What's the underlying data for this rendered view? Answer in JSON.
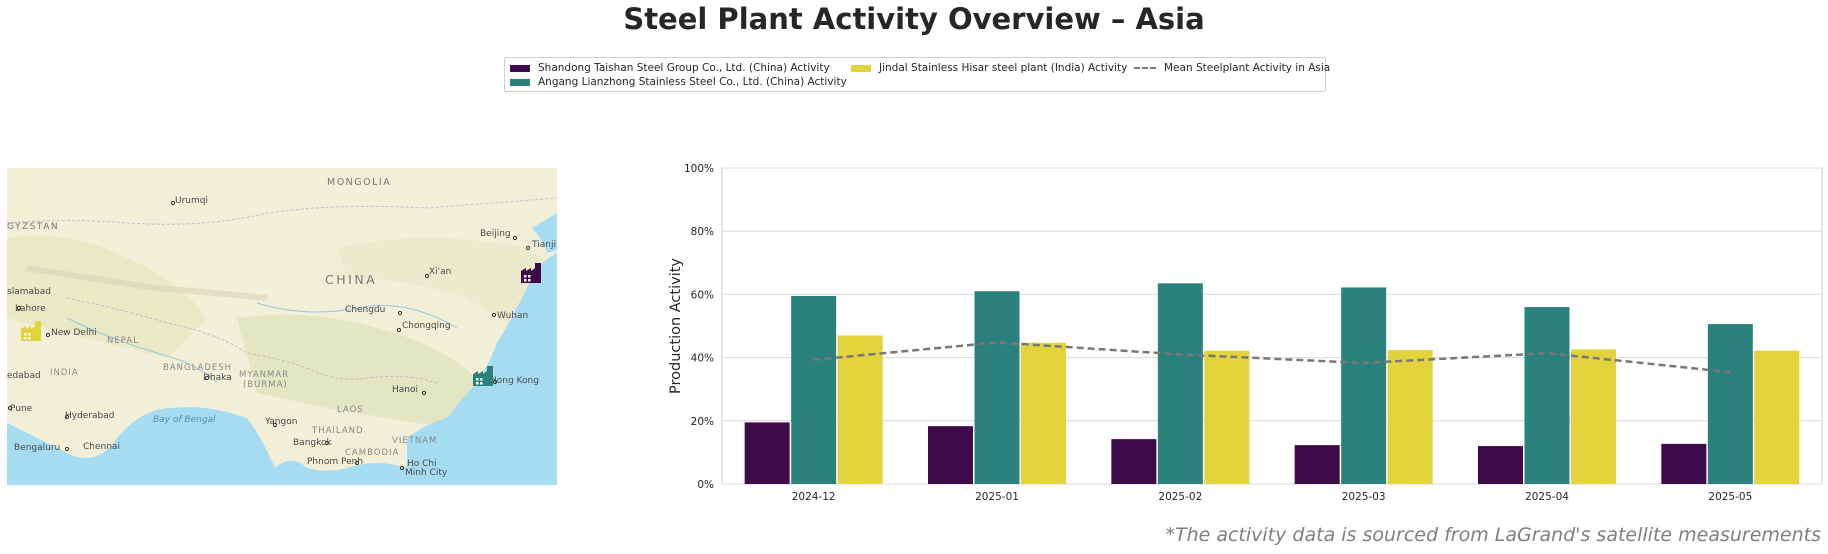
{
  "title": "Steel Plant Activity Overview – Asia",
  "footnote": "*The activity data is sourced from LaGrand's satellite measurements",
  "legend": {
    "items": [
      {
        "label": "Shandong Taishan Steel Group Co., Ltd. (China) Activity",
        "color": "#3d0a4a"
      },
      {
        "label": "Angang Lianzhong Stainless Steel Co., Ltd. (China) Activity",
        "color": "#2b817b"
      },
      {
        "label": "Jindal Stainless Hisar steel plant (India) Activity",
        "color": "#e2d33c"
      },
      {
        "label": "Mean Steelplant Activity in Asia",
        "color": "#777777"
      }
    ]
  },
  "map": {
    "labels": {
      "mongolia": "MONGOLIA",
      "urumqi": "Urumqi",
      "gyzstan": "GYZSTAN",
      "beijing": "Beijing",
      "tianjin": "Tianji",
      "china": "CHINA",
      "xian": "Xi'an",
      "islamabad": "slamabad",
      "lahore": "Lahore",
      "chengdu": "Chengdu",
      "chongqing": "Chongqing",
      "wuhan": "Wuhan",
      "newdelhi": "New Delhi",
      "nepal": "NEPAL",
      "india": "INDIA",
      "bangladesh": "BANGLADESH",
      "myanmar": "MYANMAR",
      "burma": "(BURMA)",
      "dhaka": "Dhaka",
      "edabad": "edabad",
      "hongkong": "Hong Kong",
      "hanoi": "Hanoi",
      "pune": "Pune",
      "hyderabad": "Hyderabad",
      "bayofbengal": "Bay of Bengal",
      "yangon": "Yangon",
      "laos": "LAOS",
      "thailand": "THAILAND",
      "bangkok": "Bangkok",
      "vietnam": "VIETNAM",
      "cambodia": "CAMBODIA",
      "bengaluru": "Bengaluru",
      "chennai": "Chennai",
      "phnompenh": "Phnom Penh",
      "hochiminh": "Ho Chi",
      "hochiminh2": "Minh City"
    },
    "markers": [
      {
        "plant": "Shandong Taishan Steel Group Co., Ltd. (China)",
        "color": "#3d0a4a",
        "icon": "factory-icon"
      },
      {
        "plant": "Angang Lianzhong Stainless Steel Co., Ltd. (China)",
        "color": "#2b817b",
        "icon": "factory-icon"
      },
      {
        "plant": "Jindal Stainless Hisar steel plant (India)",
        "color": "#e2d33c",
        "icon": "factory-icon"
      }
    ]
  },
  "chart_data": {
    "type": "bar",
    "categories": [
      "2024-12",
      "2025-01",
      "2025-02",
      "2025-03",
      "2025-04",
      "2025-05"
    ],
    "series": [
      {
        "name": "Shandong Taishan Steel Group Co., Ltd. (China) Activity",
        "color": "#3d0a4a",
        "values": [
          19.5,
          18.3,
          14.2,
          12.3,
          12.0,
          12.7
        ]
      },
      {
        "name": "Angang Lianzhong Stainless Steel Co., Ltd. (China) Activity",
        "color": "#2b817b",
        "values": [
          59.5,
          61.0,
          63.5,
          62.2,
          56.0,
          50.6
        ]
      },
      {
        "name": "Jindal Stainless Hisar steel plant (India) Activity",
        "color": "#e2d33c",
        "values": [
          47.0,
          44.7,
          42.2,
          42.4,
          42.6,
          42.2
        ]
      }
    ],
    "line": {
      "name": "Mean Steelplant Activity in Asia",
      "color": "#777777",
      "style": "dashed",
      "values": [
        39.3,
        44.8,
        41.0,
        38.3,
        41.4,
        35.4
      ]
    },
    "ylabel": "Production Activity",
    "xlabel": "",
    "ylim": [
      0,
      100
    ],
    "yticks": [
      "0%",
      "20%",
      "40%",
      "60%",
      "80%",
      "100%"
    ],
    "grid": true,
    "legend_position": "top-center"
  }
}
